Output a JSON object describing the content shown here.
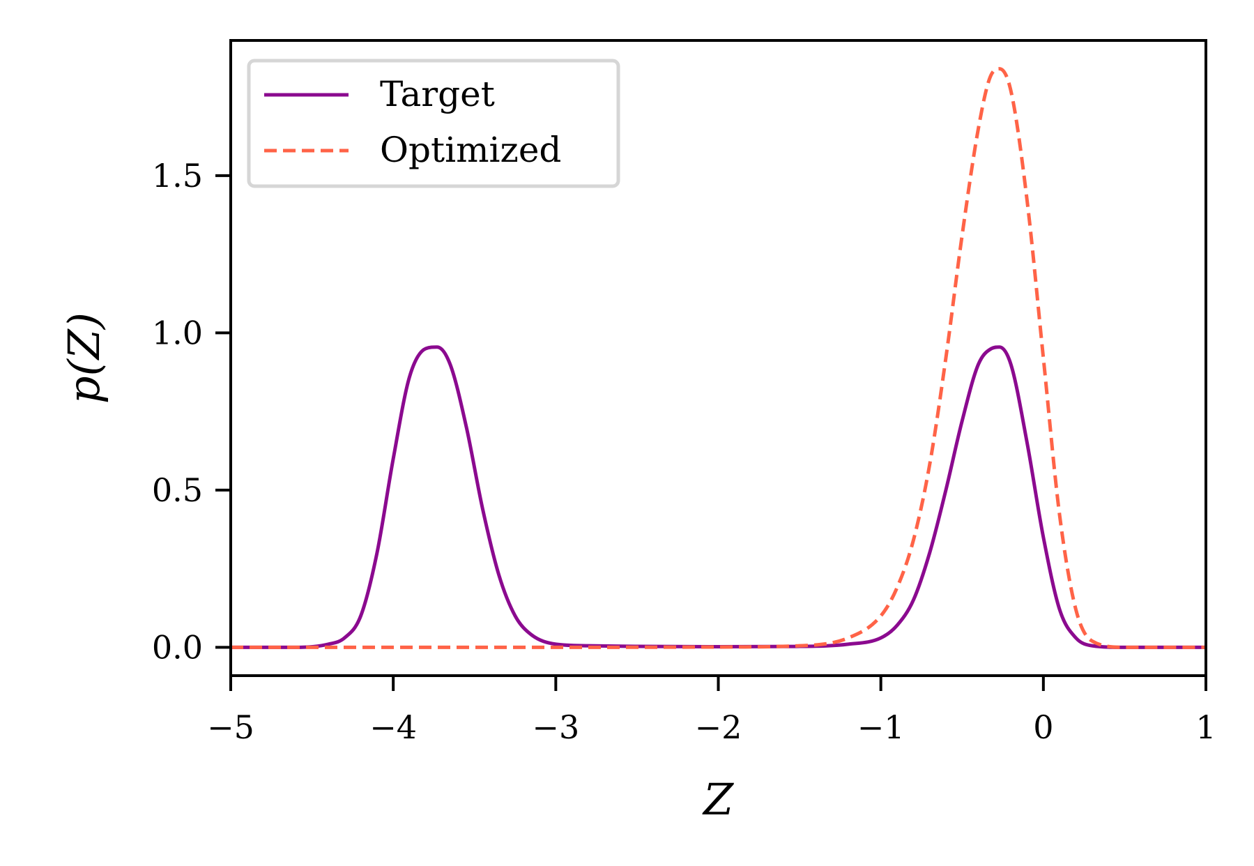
{
  "chart_data": {
    "type": "line",
    "title": "",
    "xlabel": "Z",
    "ylabel": "p(Z)",
    "xlim": [
      -5,
      1
    ],
    "ylim": [
      -0.09,
      1.93
    ],
    "xticks": [
      -5,
      -4,
      -3,
      -2,
      -1,
      0,
      1
    ],
    "xtick_labels": [
      "−5",
      "−4",
      "−3",
      "−2",
      "−1",
      "0",
      "1"
    ],
    "yticks": [
      0.0,
      0.5,
      1.0,
      1.5
    ],
    "ytick_labels": [
      "0.0",
      "0.5",
      "1.0",
      "1.5"
    ],
    "grid": false,
    "legend_position": "top-left",
    "series": [
      {
        "name": "Target",
        "style": "solid",
        "color": "#8b0a8f",
        "x": [
          -5.0,
          -4.6,
          -4.4,
          -4.3,
          -4.2,
          -4.1,
          -4.0,
          -3.9,
          -3.8,
          -3.73,
          -3.65,
          -3.55,
          -3.45,
          -3.35,
          -3.25,
          -3.15,
          -3.0,
          -2.8,
          -2.5,
          -2.0,
          -1.5,
          -1.2,
          -1.0,
          -0.9,
          -0.8,
          -0.7,
          -0.6,
          -0.5,
          -0.4,
          -0.32,
          -0.27,
          -0.2,
          -0.1,
          0.0,
          0.1,
          0.2,
          0.3,
          0.5,
          1.0
        ],
        "y": [
          0.0,
          0.0,
          0.01,
          0.03,
          0.1,
          0.3,
          0.6,
          0.86,
          0.95,
          0.955,
          0.9,
          0.7,
          0.44,
          0.23,
          0.1,
          0.04,
          0.01,
          0.005,
          0.003,
          0.002,
          0.003,
          0.01,
          0.03,
          0.07,
          0.15,
          0.3,
          0.5,
          0.72,
          0.9,
          0.95,
          0.955,
          0.9,
          0.65,
          0.35,
          0.12,
          0.03,
          0.005,
          0.0,
          0.0
        ]
      },
      {
        "name": "Optimized",
        "style": "dashed",
        "color": "#ff6347",
        "x": [
          -5.0,
          -4.0,
          -3.0,
          -2.0,
          -1.5,
          -1.2,
          -1.0,
          -0.9,
          -0.8,
          -0.7,
          -0.6,
          -0.5,
          -0.4,
          -0.33,
          -0.27,
          -0.2,
          -0.1,
          0.0,
          0.1,
          0.2,
          0.3,
          0.5,
          1.0
        ],
        "y": [
          0.0,
          0.0,
          0.0,
          0.001,
          0.005,
          0.03,
          0.1,
          0.19,
          0.34,
          0.58,
          0.92,
          1.31,
          1.65,
          1.81,
          1.84,
          1.77,
          1.42,
          0.92,
          0.42,
          0.12,
          0.02,
          0.0,
          0.0
        ]
      }
    ]
  }
}
